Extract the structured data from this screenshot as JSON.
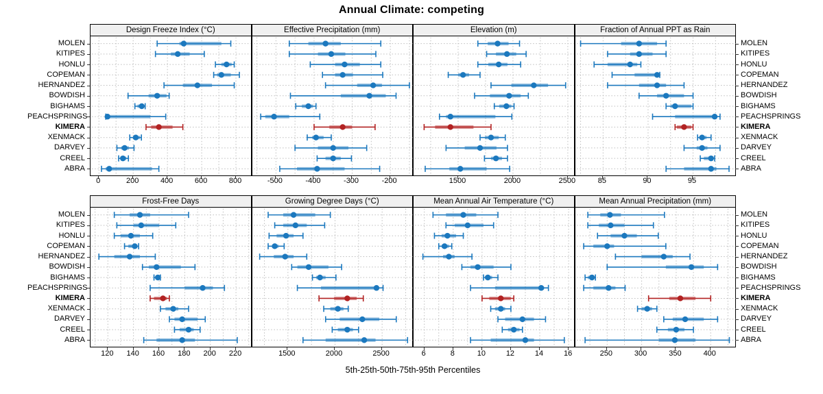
{
  "title": "Annual Climate: competing",
  "caption": "5th-25th-50th-75th-95th Percentiles",
  "sites": [
    "MOLEN",
    "KITIPES",
    "HONLU",
    "COPEMAN",
    "HERNANDEZ",
    "BOWDISH",
    "BIGHAMS",
    "PEACHSPRINGS",
    "KIMERA",
    "XENMACK",
    "DARVEY",
    "CREEL",
    "ABRA"
  ],
  "highlight_site": "KIMERA",
  "colors": {
    "series": "#1b78be",
    "highlight": "#b22222",
    "grid": "#bdbdbd",
    "strip_bg": "#f0f0f0",
    "border": "#000000",
    "tick": "#333333"
  },
  "chart_data": {
    "type": "dotplot",
    "subtype": "percentile-whisker-trellis",
    "layout": {
      "grid": "2x4",
      "legend": "none",
      "gridlines": "dotted",
      "site_labels": "left-and-right"
    },
    "percentiles": [
      5,
      25,
      50,
      75,
      95
    ],
    "site_order_top_to_bottom": [
      "MOLEN",
      "KITIPES",
      "HONLU",
      "COPEMAN",
      "HERNANDEZ",
      "BOWDISH",
      "BIGHAMS",
      "PEACHSPRINGS",
      "KIMERA",
      "XENMACK",
      "DARVEY",
      "CREEL",
      "ABRA"
    ],
    "panels": [
      {
        "title": "Design Freeze Index (°C)",
        "row": 0,
        "col": 0,
        "ticks": [
          0,
          200,
          400,
          600,
          800
        ],
        "range": [
          -45,
          890
        ],
        "series": [
          [
            340,
            470,
            495,
            715,
            770
          ],
          [
            330,
            420,
            460,
            530,
            615
          ],
          [
            680,
            715,
            745,
            775,
            790
          ],
          [
            670,
            690,
            715,
            770,
            820
          ],
          [
            380,
            490,
            575,
            660,
            790
          ],
          [
            170,
            290,
            340,
            395,
            410
          ],
          [
            210,
            225,
            250,
            262,
            270
          ],
          [
            40,
            45,
            50,
            300,
            390
          ],
          [
            275,
            305,
            350,
            430,
            490
          ],
          [
            180,
            200,
            215,
            240,
            248
          ],
          [
            105,
            130,
            150,
            175,
            205
          ],
          [
            115,
            125,
            140,
            160,
            172
          ],
          [
            15,
            40,
            60,
            310,
            350
          ]
        ]
      },
      {
        "title": "Effective Precipitation (mm)",
        "row": 0,
        "col": 1,
        "ticks": [
          -500,
          -400,
          -300,
          -200
        ],
        "range": [
          -560,
          -140
        ],
        "series": [
          [
            -465,
            -415,
            -370,
            -330,
            -225
          ],
          [
            -465,
            -390,
            -355,
            -318,
            -238
          ],
          [
            -410,
            -345,
            -320,
            -280,
            -225
          ],
          [
            -378,
            -345,
            -325,
            -298,
            -220
          ],
          [
            -370,
            -287,
            -245,
            -222,
            -150
          ],
          [
            -462,
            -330,
            -255,
            -212,
            -185
          ],
          [
            -448,
            -432,
            -415,
            -403,
            -395
          ],
          [
            -540,
            -528,
            -505,
            -465,
            -385
          ],
          [
            -400,
            -360,
            -325,
            -300,
            -240
          ],
          [
            -418,
            -405,
            -395,
            -375,
            -355
          ],
          [
            -450,
            -390,
            -350,
            -310,
            -262
          ],
          [
            -392,
            -370,
            -350,
            -330,
            -302
          ],
          [
            -490,
            -445,
            -392,
            -320,
            -228
          ]
        ]
      },
      {
        "title": "Elevation (m)",
        "row": 0,
        "col": 2,
        "ticks": [
          1500,
          2000,
          2500
        ],
        "range": [
          1100,
          2560
        ],
        "series": [
          [
            1680,
            1770,
            1860,
            1960,
            2060
          ],
          [
            1760,
            1845,
            1945,
            2030,
            2120
          ],
          [
            1680,
            1775,
            1870,
            1950,
            2070
          ],
          [
            1410,
            1500,
            1545,
            1600,
            1700
          ],
          [
            1800,
            1985,
            2190,
            2320,
            2480
          ],
          [
            1650,
            1790,
            1965,
            2070,
            2140
          ],
          [
            1830,
            1875,
            1940,
            1985,
            2010
          ],
          [
            1330,
            1390,
            1430,
            1840,
            1990
          ],
          [
            1190,
            1290,
            1430,
            1640,
            1800
          ],
          [
            1700,
            1745,
            1800,
            1870,
            1930
          ],
          [
            1390,
            1560,
            1700,
            1850,
            1950
          ],
          [
            1740,
            1800,
            1845,
            1900,
            1950
          ],
          [
            1200,
            1420,
            1520,
            1760,
            1970
          ]
        ]
      },
      {
        "title": "Fraction of Annual PPT as Rain",
        "row": 0,
        "col": 3,
        "ticks": [
          85,
          90,
          95
        ],
        "range": [
          82,
          99.8
        ],
        "series": [
          [
            82.5,
            87,
            89,
            91,
            92
          ],
          [
            85.5,
            88,
            89,
            90.5,
            92
          ],
          [
            84,
            85.5,
            88,
            88.8,
            89.2
          ],
          [
            86,
            88.5,
            91,
            91,
            91.3
          ],
          [
            85.5,
            89,
            91,
            92,
            94
          ],
          [
            89,
            91,
            92,
            94,
            95
          ],
          [
            92,
            92.5,
            93,
            94.8,
            95
          ],
          [
            90.5,
            93,
            97.4,
            97.6,
            98
          ],
          [
            93,
            93.2,
            94,
            94.8,
            95
          ],
          [
            95.5,
            95.7,
            96,
            96.5,
            97
          ],
          [
            94,
            95.4,
            96,
            96.6,
            98
          ],
          [
            95.8,
            96.2,
            97,
            97.2,
            97.4
          ],
          [
            92,
            94,
            97,
            97.6,
            99
          ]
        ]
      },
      {
        "title": "Frost-Free Days",
        "row": 1,
        "col": 0,
        "ticks": [
          120,
          140,
          160,
          180,
          200,
          220
        ],
        "range": [
          107,
          232
        ],
        "series": [
          [
            125,
            137,
            145,
            153,
            183
          ],
          [
            127,
            140,
            146,
            160,
            173
          ],
          [
            125,
            130,
            138,
            145,
            155
          ],
          [
            133,
            136,
            141,
            143,
            144
          ],
          [
            113,
            125,
            137,
            145,
            157
          ],
          [
            147,
            152,
            158,
            177,
            188
          ],
          [
            156,
            157,
            159,
            160,
            161
          ],
          [
            153,
            180,
            194,
            202,
            211
          ],
          [
            153,
            156,
            163,
            166,
            168
          ],
          [
            161,
            165,
            171,
            175,
            183
          ],
          [
            168,
            172,
            178,
            190,
            196
          ],
          [
            172,
            176,
            183,
            187,
            192
          ],
          [
            148,
            158,
            178,
            188,
            221
          ]
        ]
      },
      {
        "title": "Growing Degree Days (°C)",
        "row": 1,
        "col": 1,
        "ticks": [
          1500,
          2000,
          2500
        ],
        "range": [
          1130,
          2830
        ],
        "series": [
          [
            1290,
            1450,
            1560,
            1790,
            1950
          ],
          [
            1360,
            1450,
            1580,
            1700,
            1890
          ],
          [
            1300,
            1380,
            1480,
            1560,
            1660
          ],
          [
            1290,
            1330,
            1360,
            1400,
            1460
          ],
          [
            1200,
            1350,
            1470,
            1560,
            1700
          ],
          [
            1540,
            1600,
            1720,
            1930,
            2070
          ],
          [
            1760,
            1800,
            1840,
            1900,
            2010
          ],
          [
            1600,
            1850,
            2440,
            2450,
            2510
          ],
          [
            1830,
            1990,
            2130,
            2230,
            2300
          ],
          [
            1880,
            1950,
            2030,
            2090,
            2140
          ],
          [
            1900,
            2050,
            2290,
            2470,
            2650
          ],
          [
            1970,
            2030,
            2130,
            2190,
            2250
          ],
          [
            1660,
            1900,
            2310,
            2430,
            2770
          ]
        ]
      },
      {
        "title": "Mean Annual Air Temperature (°C)",
        "row": 1,
        "col": 2,
        "ticks": [
          6,
          8,
          10,
          12,
          14,
          16
        ],
        "range": [
          5.3,
          16.4
        ],
        "series": [
          [
            6.6,
            7.5,
            8.7,
            9.6,
            11.1
          ],
          [
            7.5,
            8.1,
            9.0,
            10.1,
            10.8
          ],
          [
            6.7,
            7.2,
            7.6,
            8.2,
            8.7
          ],
          [
            7.0,
            7.2,
            7.4,
            7.7,
            7.9
          ],
          [
            5.9,
            7.3,
            7.7,
            8.1,
            9.3
          ],
          [
            8.6,
            9.2,
            9.7,
            10.8,
            12.0
          ],
          [
            10.1,
            10.2,
            10.4,
            10.7,
            11.1
          ],
          [
            9.2,
            10.9,
            14.1,
            14.3,
            14.6
          ],
          [
            10.0,
            10.5,
            11.3,
            12.0,
            12.2
          ],
          [
            10.6,
            10.9,
            11.3,
            11.6,
            12.0
          ],
          [
            11.1,
            11.6,
            12.8,
            13.6,
            14.4
          ],
          [
            11.4,
            11.8,
            12.2,
            12.6,
            12.8
          ],
          [
            9.2,
            10.6,
            13.0,
            13.6,
            15.7
          ]
        ]
      },
      {
        "title": "Mean Annual Precipitation (mm)",
        "row": 1,
        "col": 3,
        "ticks": [
          250,
          300,
          350,
          400
        ],
        "range": [
          205,
          437
        ],
        "series": [
          [
            222,
            240,
            254,
            270,
            333
          ],
          [
            222,
            238,
            255,
            275,
            317
          ],
          [
            236,
            255,
            275,
            293,
            324
          ],
          [
            216,
            230,
            250,
            260,
            335
          ],
          [
            262,
            300,
            332,
            345,
            370
          ],
          [
            250,
            335,
            372,
            390,
            410
          ],
          [
            218,
            222,
            228,
            231,
            233
          ],
          [
            216,
            230,
            252,
            262,
            276
          ],
          [
            310,
            340,
            356,
            378,
            400
          ],
          [
            294,
            300,
            308,
            315,
            322
          ],
          [
            332,
            345,
            363,
            390,
            410
          ],
          [
            322,
            338,
            350,
            362,
            375
          ],
          [
            218,
            325,
            348,
            378,
            427
          ]
        ]
      }
    ]
  }
}
